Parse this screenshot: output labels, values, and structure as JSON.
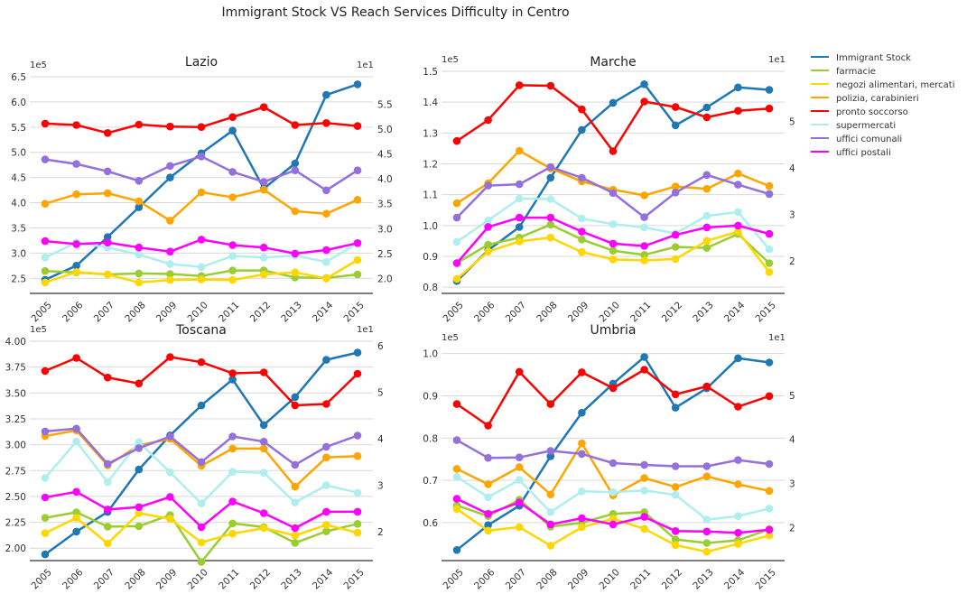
{
  "figure_title": "Immigrant Stock VS Reach Services Difficulty in Centro",
  "legend": [
    {
      "label": "Immigrant Stock",
      "color": "#1f77b4"
    },
    {
      "label": "farmacie",
      "color": "#9acd32"
    },
    {
      "label": "negozi alimentari, mercati",
      "color": "#ffd700"
    },
    {
      "label": "polizia, carabinieri",
      "color": "#ffa500"
    },
    {
      "label": "pronto soccorso",
      "color": "#ff0000"
    },
    {
      "label": "supermercati",
      "color": "#afeeee"
    },
    {
      "label": "uffici comunali",
      "color": "#9370db"
    },
    {
      "label": "uffici postali",
      "color": "#ff00ff"
    }
  ],
  "chart_data": [
    {
      "type": "line",
      "title": "Lazio",
      "x": [
        "2005",
        "2006",
        "2007",
        "2008",
        "2009",
        "2010",
        "2011",
        "2012",
        "2013",
        "2014",
        "2015"
      ],
      "left_axis": {
        "exponent_label": "1e5",
        "ylim": [
          2.2,
          6.5
        ],
        "ticks": [
          2.5,
          3.0,
          3.5,
          4.0,
          4.5,
          5.0,
          5.5,
          6.0,
          6.5
        ],
        "tick_labels": [
          "2.5",
          "3.0",
          "3.5",
          "4.0",
          "4.5",
          "5.0",
          "5.5",
          "6.0",
          "6.5"
        ]
      },
      "right_axis": {
        "exponent_label": "1e1",
        "ylim": [
          1.7,
          6.05
        ],
        "ticks": [
          2.0,
          2.5,
          3.0,
          3.5,
          4.0,
          4.5,
          5.0,
          5.5
        ],
        "tick_labels": [
          "2.0",
          "2.5",
          "3.0",
          "3.5",
          "4.0",
          "4.5",
          "5.0",
          "5.5"
        ]
      },
      "series": [
        {
          "name": "Immigrant Stock",
          "axis": "left",
          "values": [
            2.47,
            2.75,
            3.32,
            3.91,
            4.5,
            4.98,
            5.43,
            4.28,
            4.78,
            6.14,
            6.35
          ]
        },
        {
          "name": "farmacie",
          "axis": "right",
          "values": [
            2.15,
            2.12,
            2.08,
            2.1,
            2.09,
            2.05,
            2.16,
            2.16,
            2.02,
            2.01,
            2.08
          ]
        },
        {
          "name": "negozi alimentari, mercati",
          "axis": "right",
          "values": [
            1.92,
            2.13,
            2.08,
            1.92,
            1.97,
            1.98,
            1.97,
            2.08,
            2.12,
            2.0,
            2.37
          ]
        },
        {
          "name": "polizia, carabinieri",
          "axis": "right",
          "values": [
            3.5,
            3.69,
            3.71,
            3.55,
            3.16,
            3.73,
            3.63,
            3.78,
            3.35,
            3.3,
            3.58
          ]
        },
        {
          "name": "pronto soccorso",
          "axis": "right",
          "values": [
            5.11,
            5.08,
            4.92,
            5.09,
            5.05,
            5.04,
            5.24,
            5.44,
            5.08,
            5.12,
            5.06
          ]
        },
        {
          "name": "supermercati",
          "axis": "right",
          "values": [
            2.42,
            2.72,
            2.62,
            2.48,
            2.29,
            2.23,
            2.45,
            2.42,
            2.46,
            2.33,
            2.71
          ]
        },
        {
          "name": "uffici comunali",
          "axis": "right",
          "values": [
            4.39,
            4.3,
            4.15,
            3.96,
            4.26,
            4.45,
            4.14,
            3.94,
            4.17,
            3.77,
            4.17
          ]
        },
        {
          "name": "uffici postali",
          "axis": "right",
          "values": [
            2.75,
            2.69,
            2.72,
            2.62,
            2.54,
            2.78,
            2.67,
            2.62,
            2.5,
            2.57,
            2.71
          ]
        }
      ]
    },
    {
      "type": "line",
      "title": "Marche",
      "x": [
        "2005",
        "2006",
        "2007",
        "2008",
        "2009",
        "2010",
        "2011",
        "2012",
        "2013",
        "2014",
        "2015"
      ],
      "left_axis": {
        "exponent_label": "1e5",
        "ylim": [
          0.78,
          1.5
        ],
        "ticks": [
          0.8,
          0.9,
          1.0,
          1.1,
          1.2,
          1.3,
          1.4,
          1.5
        ],
        "tick_labels": [
          "0.8",
          "0.9",
          "1.0",
          "1.1",
          "1.2",
          "1.3",
          "1.4",
          "1.5"
        ]
      },
      "right_axis": {
        "exponent_label": "1e1",
        "ylim": [
          1.3,
          6.08
        ],
        "ticks": [
          2,
          3,
          4,
          5
        ],
        "tick_labels": [
          "2",
          "3",
          "4",
          "5"
        ]
      },
      "series": [
        {
          "name": "Immigrant Stock",
          "axis": "left",
          "values": [
            0.82,
            0.92,
            0.995,
            1.155,
            1.31,
            1.398,
            1.458,
            1.325,
            1.383,
            1.448,
            1.44
          ]
        },
        {
          "name": "farmacie",
          "axis": "right",
          "values": [
            1.95,
            2.35,
            2.5,
            2.78,
            2.46,
            2.22,
            2.13,
            2.3,
            2.28,
            2.58,
            1.95
          ]
        },
        {
          "name": "negozi alimentari, mercati",
          "axis": "right",
          "values": [
            1.61,
            2.2,
            2.42,
            2.5,
            2.19,
            2.03,
            2.01,
            2.04,
            2.43,
            2.63,
            1.76
          ]
        },
        {
          "name": "polizia, carabinieri",
          "axis": "right",
          "values": [
            3.24,
            3.67,
            4.37,
            3.99,
            3.71,
            3.53,
            3.41,
            3.6,
            3.55,
            3.88,
            3.61
          ]
        },
        {
          "name": "pronto soccorso",
          "axis": "right",
          "values": [
            4.58,
            5.03,
            5.78,
            5.77,
            5.26,
            4.36,
            5.43,
            5.31,
            5.09,
            5.23,
            5.28
          ]
        },
        {
          "name": "supermercati",
          "axis": "right",
          "values": [
            2.41,
            2.87,
            3.34,
            3.33,
            2.91,
            2.79,
            2.72,
            2.59,
            2.97,
            3.05,
            2.25
          ]
        },
        {
          "name": "uffici comunali",
          "axis": "right",
          "values": [
            2.93,
            3.62,
            3.65,
            4.02,
            3.79,
            3.46,
            2.94,
            3.47,
            3.85,
            3.64,
            3.44
          ]
        },
        {
          "name": "uffici postali",
          "axis": "right",
          "values": [
            1.95,
            2.73,
            2.93,
            2.93,
            2.63,
            2.37,
            2.32,
            2.56,
            2.72,
            2.76,
            2.58
          ]
        }
      ]
    },
    {
      "type": "line",
      "title": "Toscana",
      "x": [
        "2005",
        "2006",
        "2007",
        "2008",
        "2009",
        "2010",
        "2011",
        "2012",
        "2013",
        "2014",
        "2015"
      ],
      "left_axis": {
        "exponent_label": "1e5",
        "ylim": [
          1.88,
          4.0
        ],
        "ticks": [
          2.0,
          2.25,
          2.5,
          2.75,
          3.0,
          3.25,
          3.5,
          3.75,
          4.0
        ],
        "tick_labels": [
          "2.00",
          "2.25",
          "2.50",
          "2.75",
          "3.00",
          "3.25",
          "3.50",
          "3.75",
          "4.00"
        ]
      },
      "right_axis": {
        "exponent_label": "1e1",
        "ylim": [
          1.38,
          6.1
        ],
        "ticks": [
          2,
          3,
          4,
          5,
          6
        ],
        "tick_labels": [
          "2",
          "3",
          "4",
          "5",
          "6"
        ]
      },
      "series": [
        {
          "name": "Immigrant Stock",
          "axis": "left",
          "values": [
            1.94,
            2.16,
            2.35,
            2.76,
            3.09,
            3.38,
            3.63,
            3.19,
            3.46,
            3.82,
            3.89
          ]
        },
        {
          "name": "farmacie",
          "axis": "right",
          "values": [
            2.3,
            2.42,
            2.11,
            2.12,
            2.36,
            1.35,
            2.18,
            2.1,
            1.76,
            2.01,
            2.17
          ]
        },
        {
          "name": "negozi alimentari, mercati",
          "axis": "right",
          "values": [
            1.97,
            2.3,
            1.75,
            2.4,
            2.28,
            1.77,
            1.96,
            2.08,
            1.92,
            2.15,
            1.98
          ]
        },
        {
          "name": "polizia, carabinieri",
          "axis": "right",
          "values": [
            4.06,
            4.18,
            3.43,
            3.86,
            4.0,
            3.42,
            3.79,
            3.79,
            2.97,
            3.6,
            3.63
          ]
        },
        {
          "name": "pronto soccorso",
          "axis": "right",
          "values": [
            5.46,
            5.74,
            5.32,
            5.19,
            5.76,
            5.65,
            5.41,
            5.43,
            4.72,
            4.75,
            5.4
          ]
        },
        {
          "name": "supermercati",
          "axis": "right",
          "values": [
            3.16,
            3.94,
            3.07,
            3.93,
            3.28,
            2.61,
            3.29,
            3.27,
            2.63,
            3.0,
            2.84
          ]
        },
        {
          "name": "uffici comunali",
          "axis": "right",
          "values": [
            4.16,
            4.22,
            3.46,
            3.8,
            4.05,
            3.5,
            4.05,
            3.94,
            3.44,
            3.83,
            4.07
          ]
        },
        {
          "name": "uffici postali",
          "axis": "right",
          "values": [
            2.74,
            2.86,
            2.48,
            2.53,
            2.75,
            2.1,
            2.65,
            2.4,
            2.08,
            2.43,
            2.43
          ]
        }
      ]
    },
    {
      "type": "line",
      "title": "Umbria",
      "x": [
        "2005",
        "2006",
        "2007",
        "2008",
        "2009",
        "2010",
        "2011",
        "2012",
        "2013",
        "2014",
        "2015"
      ],
      "left_axis": {
        "exponent_label": "1e5",
        "ylim": [
          0.51,
          1.01
        ],
        "ticks": [
          0.6,
          0.7,
          0.8,
          0.9,
          1.0
        ],
        "tick_labels": [
          "0.6",
          "0.7",
          "0.8",
          "0.9",
          "1.0"
        ]
      },
      "right_axis": {
        "exponent_label": "1e1",
        "ylim": [
          1.25,
          6.04
        ],
        "ticks": [
          2,
          3,
          4,
          5
        ],
        "tick_labels": [
          "2",
          "3",
          "4",
          "5"
        ]
      },
      "series": [
        {
          "name": "Immigrant Stock",
          "axis": "left",
          "values": [
            0.535,
            0.594,
            0.64,
            0.757,
            0.86,
            0.929,
            0.992,
            0.872,
            0.918,
            0.989,
            0.979
          ]
        },
        {
          "name": "farmacie",
          "axis": "right",
          "values": [
            2.5,
            2.26,
            2.63,
            2.02,
            2.11,
            2.31,
            2.35,
            1.73,
            1.65,
            1.71,
            1.96
          ]
        },
        {
          "name": "negozi alimentari, mercati",
          "axis": "right",
          "values": [
            2.42,
            1.93,
            2.01,
            1.59,
            2.01,
            2.2,
            1.97,
            1.6,
            1.45,
            1.63,
            1.82
          ]
        },
        {
          "name": "polizia, carabinieri",
          "axis": "right",
          "values": [
            3.33,
            2.98,
            3.37,
            2.75,
            3.91,
            2.73,
            3.12,
            2.92,
            3.16,
            2.98,
            2.83
          ]
        },
        {
          "name": "pronto soccorso",
          "axis": "right",
          "values": [
            4.8,
            4.31,
            5.53,
            4.8,
            5.52,
            5.16,
            5.58,
            5.02,
            5.2,
            4.74,
            4.98
          ]
        },
        {
          "name": "supermercati",
          "axis": "right",
          "values": [
            3.15,
            2.69,
            3.08,
            2.35,
            2.82,
            2.8,
            2.84,
            2.74,
            2.18,
            2.26,
            2.43
          ]
        },
        {
          "name": "uffici comunali",
          "axis": "right",
          "values": [
            3.98,
            3.58,
            3.59,
            3.74,
            3.67,
            3.46,
            3.42,
            3.39,
            3.39,
            3.53,
            3.44
          ]
        },
        {
          "name": "uffici postali",
          "axis": "right",
          "values": [
            2.65,
            2.31,
            2.57,
            2.07,
            2.21,
            2.07,
            2.24,
            1.92,
            1.91,
            1.88,
            1.95
          ]
        }
      ]
    }
  ]
}
